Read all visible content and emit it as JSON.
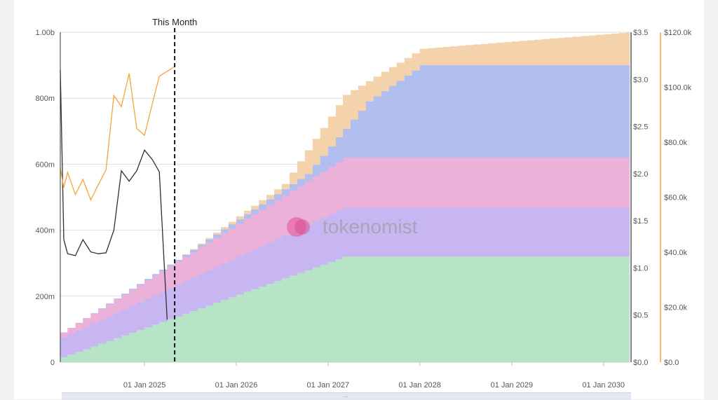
{
  "chart_data": {
    "type": "area",
    "stacked": true,
    "step": true,
    "x_dates": [
      "2024-01-01",
      "2025-01-01",
      "2026-01-01",
      "2027-01-01",
      "2028-01-01",
      "2029-01-01",
      "2030-01-01"
    ],
    "x_tick_labels": [
      "01 Jan 2025",
      "01 Jan 2026",
      "01 Jan 2027",
      "01 Jan 2028",
      "01 Jan 2029",
      "01 Jan 2030"
    ],
    "x_ticks_dates": [
      "2025-01-01",
      "2026-01-01",
      "2027-01-01",
      "2028-01-01",
      "2029-01-01",
      "2030-01-01"
    ],
    "x_range": [
      "2024-02-01",
      "2030-04-15"
    ],
    "y_left": {
      "ticks": [
        "0",
        "200m",
        "400m",
        "600m",
        "800m",
        "1.00b"
      ],
      "range": [
        0,
        1000000000
      ]
    },
    "y_right_price": {
      "ticks": [
        "$0.0",
        "$0.5",
        "$1.0",
        "$1.5",
        "$2.0",
        "$2.5",
        "$3.0",
        "$3.5"
      ],
      "range": [
        0,
        3.5
      ]
    },
    "y_right_volume": {
      "ticks": [
        "$0.0",
        "$20.0k",
        "$40.0k",
        "$60.0k",
        "$80.0k",
        "$100.0k",
        "$120.0k"
      ],
      "range": [
        0,
        120000
      ]
    },
    "grid": true,
    "annotation": {
      "label": "This Month",
      "date": "2025-05-01"
    },
    "stack_series": [
      {
        "color": "#b7e4c7",
        "points": [
          [
            "2024-02-01",
            15000000
          ],
          [
            "2027-03-01",
            320000000
          ],
          [
            "2030-04-15",
            320000000
          ]
        ]
      },
      {
        "color": "#c8b6f3",
        "points": [
          [
            "2024-02-01",
            75000000
          ],
          [
            "2027-03-01",
            470000000
          ],
          [
            "2030-04-15",
            470000000
          ]
        ]
      },
      {
        "color": "#ebb1d9",
        "points": [
          [
            "2024-02-01",
            90000000
          ],
          [
            "2027-03-01",
            620000000
          ],
          [
            "2030-04-15",
            620000000
          ]
        ]
      },
      {
        "color": "#b1bff0",
        "points": [
          [
            "2024-02-01",
            90000000
          ],
          [
            "2025-05-01",
            310000000
          ],
          [
            "2026-10-01",
            570000000
          ],
          [
            "2027-06-01",
            790000000
          ],
          [
            "2028-01-01",
            900000000
          ],
          [
            "2030-04-15",
            900000000
          ]
        ]
      },
      {
        "color": "#f4d2ab",
        "points": [
          [
            "2024-02-01",
            90000000
          ],
          [
            "2025-05-01",
            310000000
          ],
          [
            "2026-07-01",
            540000000
          ],
          [
            "2027-03-01",
            810000000
          ],
          [
            "2028-01-01",
            950000000
          ],
          [
            "2030-04-15",
            1000000000
          ]
        ]
      }
    ],
    "price_line": {
      "color": "#2f2f2f",
      "points": [
        [
          "2024-02-01",
          3.1
        ],
        [
          "2024-02-15",
          1.3
        ],
        [
          "2024-03-01",
          1.15
        ],
        [
          "2024-04-01",
          1.13
        ],
        [
          "2024-05-01",
          1.3
        ],
        [
          "2024-06-01",
          1.17
        ],
        [
          "2024-07-01",
          1.15
        ],
        [
          "2024-08-01",
          1.16
        ],
        [
          "2024-09-01",
          1.4
        ],
        [
          "2024-10-01",
          2.03
        ],
        [
          "2024-11-01",
          1.92
        ],
        [
          "2024-12-01",
          2.03
        ],
        [
          "2025-01-01",
          2.25
        ],
        [
          "2025-02-01",
          2.15
        ],
        [
          "2025-03-01",
          2.02
        ],
        [
          "2025-04-01",
          0.45
        ]
      ]
    },
    "volume_line": {
      "color": "#f0a63a",
      "points": [
        [
          "2024-02-01",
          70500
        ],
        [
          "2024-02-15",
          63500
        ],
        [
          "2024-03-01",
          69000
        ],
        [
          "2024-04-01",
          61000
        ],
        [
          "2024-05-01",
          66500
        ],
        [
          "2024-06-01",
          59000
        ],
        [
          "2024-07-01",
          64500
        ],
        [
          "2024-08-01",
          70000
        ],
        [
          "2024-09-01",
          97000
        ],
        [
          "2024-10-01",
          93000
        ],
        [
          "2024-11-01",
          105000
        ],
        [
          "2024-12-01",
          85000
        ],
        [
          "2025-01-01",
          82500
        ],
        [
          "2025-02-01",
          94000
        ],
        [
          "2025-03-01",
          104000
        ],
        [
          "2025-05-01",
          107500
        ]
      ]
    }
  },
  "watermark": {
    "text": "tokenomist"
  },
  "scroll_grip": "..."
}
